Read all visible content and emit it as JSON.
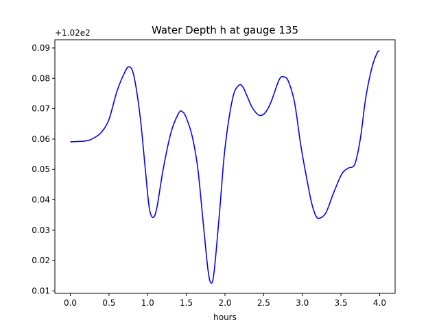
{
  "chart_data": {
    "type": "line",
    "title": "Water Depth h at gauge 135",
    "xlabel": "hours",
    "ylabel": "",
    "offset_text": "+1.02e2",
    "xlim": [
      -0.2,
      4.2
    ],
    "ylim": [
      0.0092,
      0.0927
    ],
    "xticks": [
      0.0,
      0.5,
      1.0,
      1.5,
      2.0,
      2.5,
      3.0,
      3.5,
      4.0
    ],
    "xtick_labels": [
      "0.0",
      "0.5",
      "1.0",
      "1.5",
      "2.0",
      "2.5",
      "3.0",
      "3.5",
      "4.0"
    ],
    "yticks": [
      0.01,
      0.02,
      0.03,
      0.04,
      0.05,
      0.06,
      0.07,
      0.08,
      0.09
    ],
    "ytick_labels": [
      "0.01",
      "0.02",
      "0.03",
      "0.04",
      "0.05",
      "0.06",
      "0.07",
      "0.08",
      "0.09"
    ],
    "grid": false,
    "color": "#0000ff",
    "series": [
      {
        "x": [
          0.0,
          0.2,
          0.3,
          0.4,
          0.5,
          0.6,
          0.7,
          0.76,
          0.82,
          0.9,
          0.97,
          1.02,
          1.07,
          1.12,
          1.2,
          1.3,
          1.4,
          1.45,
          1.5,
          1.58,
          1.65,
          1.72,
          1.78,
          1.82,
          1.86,
          1.93,
          2.0,
          2.1,
          2.18,
          2.23,
          2.28,
          2.35,
          2.42,
          2.47,
          2.53,
          2.6,
          2.7,
          2.76,
          2.82,
          2.9,
          2.98,
          3.05,
          3.12,
          3.18,
          3.23,
          3.3,
          3.35,
          3.4,
          3.5,
          3.55,
          3.6,
          3.68,
          3.75,
          3.82,
          3.9,
          3.97,
          4.0
        ],
        "y": [
          0.0591,
          0.0594,
          0.0603,
          0.0622,
          0.0665,
          0.0755,
          0.0818,
          0.0838,
          0.081,
          0.068,
          0.05,
          0.0375,
          0.0342,
          0.0375,
          0.05,
          0.062,
          0.0685,
          0.069,
          0.067,
          0.0605,
          0.05,
          0.032,
          0.017,
          0.0126,
          0.0165,
          0.036,
          0.057,
          0.0735,
          0.0777,
          0.0772,
          0.0745,
          0.0705,
          0.0682,
          0.0678,
          0.069,
          0.0725,
          0.0795,
          0.0805,
          0.079,
          0.072,
          0.058,
          0.048,
          0.039,
          0.0345,
          0.034,
          0.0355,
          0.0385,
          0.042,
          0.048,
          0.0497,
          0.0505,
          0.0518,
          0.06,
          0.0735,
          0.0835,
          0.0885,
          0.089
        ]
      }
    ]
  }
}
